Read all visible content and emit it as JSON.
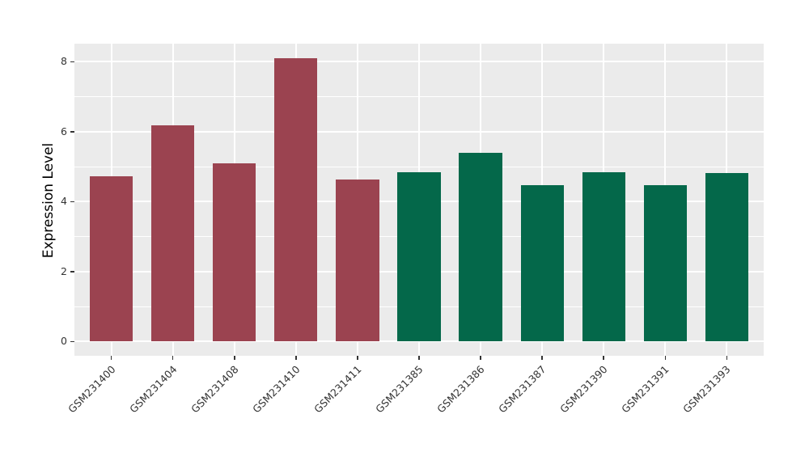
{
  "chart_data": {
    "type": "bar",
    "title": "",
    "xlabel": "",
    "ylabel": "Expression Level",
    "categories": [
      "GSM231400",
      "GSM231404",
      "GSM231408",
      "GSM231410",
      "GSM231411",
      "GSM231385",
      "GSM231386",
      "GSM231387",
      "GSM231390",
      "GSM231391",
      "GSM231393"
    ],
    "values": [
      4.73,
      6.19,
      5.1,
      8.11,
      4.64,
      4.85,
      5.4,
      4.47,
      4.85,
      4.47,
      4.83
    ],
    "bar_colors": [
      "#9B4350",
      "#9B4350",
      "#9B4350",
      "#9B4350",
      "#9B4350",
      "#04684A",
      "#04684A",
      "#04684A",
      "#04684A",
      "#04684A",
      "#04684A"
    ],
    "yticks": [
      0,
      2,
      4,
      6,
      8
    ],
    "yticks_minor": [
      1,
      3,
      5,
      7
    ],
    "ylim": [
      -0.41,
      8.52
    ],
    "legend": "none",
    "style": {
      "panel_background": "#EBEBEB",
      "gridline_color": "#FFFFFF",
      "axis_text_color": "#333333",
      "axis_title_color": "#000000",
      "bar_color_group1": "#9B4350",
      "bar_color_group2": "#04684A",
      "x_label_rotation_deg": 45
    }
  }
}
